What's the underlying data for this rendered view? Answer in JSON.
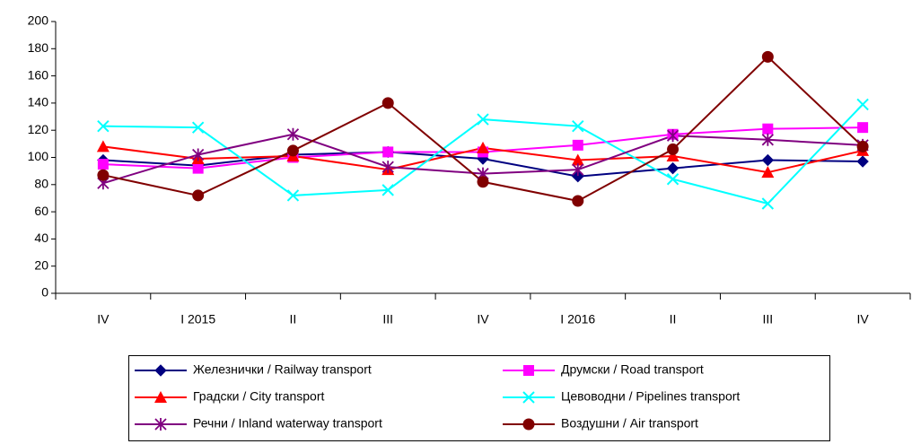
{
  "chart_data": {
    "type": "line",
    "categories": [
      "IV",
      "I 2015",
      "II",
      "III",
      "IV",
      "I 2016",
      "II",
      "III",
      "IV"
    ],
    "ylim": [
      0,
      200
    ],
    "yticks": [
      0,
      20,
      40,
      60,
      80,
      100,
      120,
      140,
      160,
      180,
      200
    ],
    "grid": false,
    "series": [
      {
        "name": "Железнички / Railway transport",
        "color": "#000080",
        "marker": "diamond",
        "values": [
          98,
          94,
          102,
          104,
          99,
          86,
          92,
          98,
          97
        ]
      },
      {
        "name": "Друмски / Road transport",
        "color": "#ff00ff",
        "marker": "square",
        "values": [
          95,
          92,
          100,
          104,
          104,
          109,
          117,
          121,
          122
        ]
      },
      {
        "name": "Градски / City transport",
        "color": "#ff0000",
        "marker": "triangle",
        "values": [
          108,
          99,
          101,
          91,
          107,
          98,
          101,
          89,
          105
        ]
      },
      {
        "name": "Цевоводни / Pipelines transport",
        "color": "#00ffff",
        "marker": "x",
        "values": [
          123,
          122,
          72,
          76,
          128,
          123,
          84,
          66,
          139
        ]
      },
      {
        "name": "Речни / Inland waterway transport",
        "color": "#800080",
        "marker": "asterisk",
        "values": [
          81,
          102,
          117,
          93,
          88,
          91,
          116,
          113,
          109
        ]
      },
      {
        "name": "Воздушни / Air transport",
        "color": "#800000",
        "marker": "circle",
        "values": [
          87,
          72,
          105,
          140,
          82,
          68,
          106,
          174,
          108
        ]
      }
    ]
  }
}
